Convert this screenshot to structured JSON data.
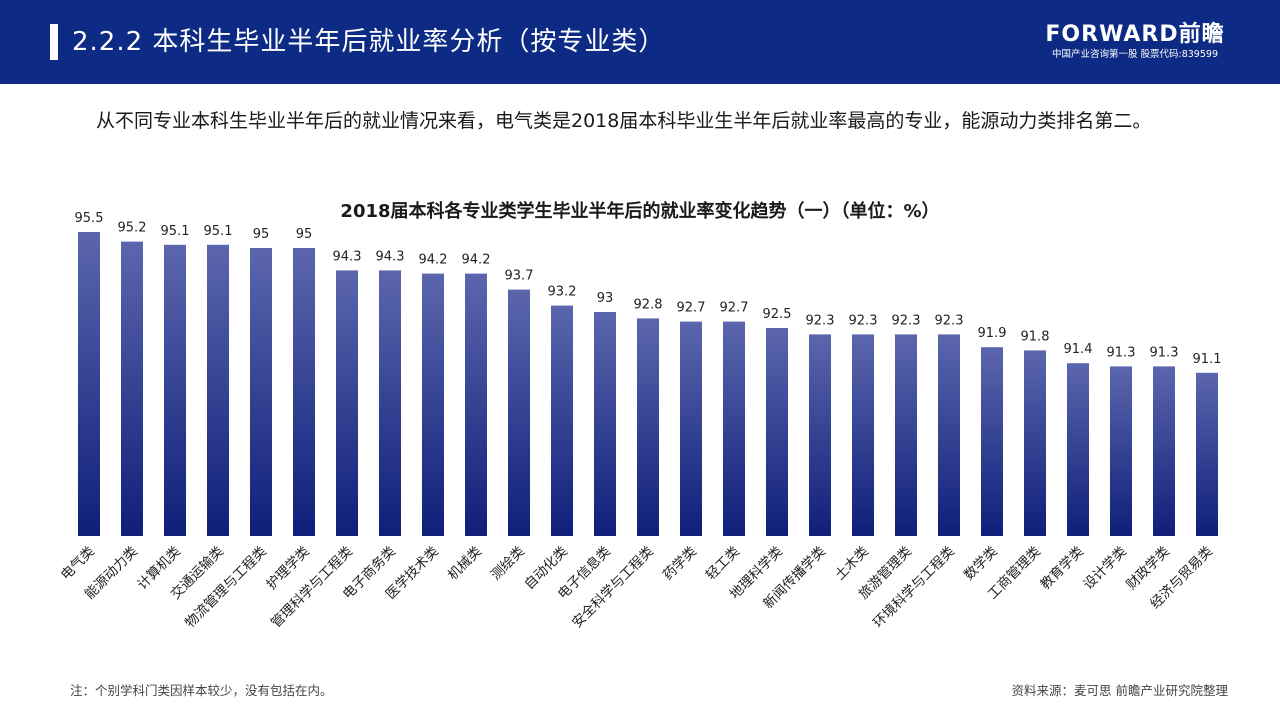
{
  "header": {
    "title": "2.2.2 本科生毕业半年后就业率分析（按专业类）",
    "brand_name": "FORWARD前瞻",
    "brand_sub": "中国产业咨询第一股 股票代码:839599"
  },
  "intro": "从不同专业本科生毕业半年后的就业情况来看，电气类是2018届本科毕业生半年后就业率最高的专业，能源动力类排名第二。",
  "colors": {
    "header_bg": "#0d2b84",
    "bar_top": "#5b66ad",
    "bar_bottom": "#0f1f7a"
  },
  "chart_data": {
    "type": "bar",
    "title": "2018届本科各专业类学生毕业半年后的就业率变化趋势（一）（单位：%）",
    "xlabel": "",
    "ylabel": "",
    "ylim": [
      86,
      96
    ],
    "grid": false,
    "categories": [
      "电气类",
      "能源动力类",
      "计算机类",
      "交通运输类",
      "物流管理与工程类",
      "护理学类",
      "管理科学与工程类",
      "电子商务类",
      "医学技术类",
      "机械类",
      "测绘类",
      "自动化类",
      "电子信息类",
      "安全科学与工程类",
      "药学类",
      "轻工类",
      "地理科学类",
      "新闻传播学类",
      "土木类",
      "旅游管理类",
      "环境科学与工程类",
      "数学类",
      "工商管理类",
      "教育学类",
      "设计学类",
      "财政学类",
      "经济与贸易类"
    ],
    "values": [
      95.5,
      95.2,
      95.1,
      95.1,
      95,
      95,
      94.3,
      94.3,
      94.2,
      94.2,
      93.7,
      93.2,
      93,
      92.8,
      92.7,
      92.7,
      92.5,
      92.3,
      92.3,
      92.3,
      92.3,
      91.9,
      91.8,
      91.4,
      91.3,
      91.3,
      91.1
    ]
  },
  "footer": {
    "note": "注：个别学科门类因样本较少，没有包括在内。",
    "source": "资料来源：麦可思 前瞻产业研究院整理"
  }
}
